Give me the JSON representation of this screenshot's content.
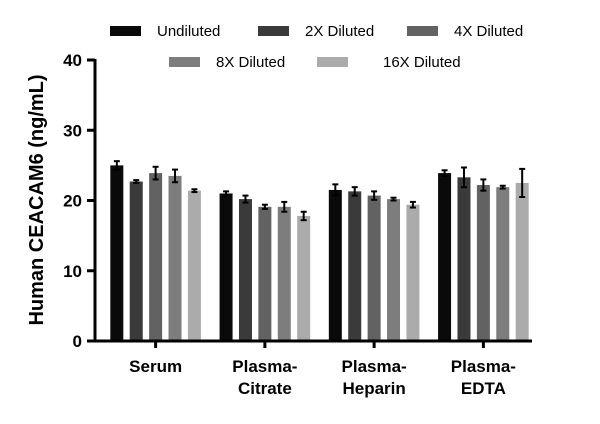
{
  "chart_data": {
    "type": "bar",
    "ylabel": "Human CEACAM6 (ng/mL)",
    "ylim": [
      0,
      40
    ],
    "yticks": [
      0,
      10,
      20,
      30,
      40
    ],
    "grid": false,
    "legend_position": "top",
    "categories": [
      [
        "Serum"
      ],
      [
        "Plasma-",
        "Citrate"
      ],
      [
        "Plasma-",
        "Heparin"
      ],
      [
        "Plasma-",
        "EDTA"
      ]
    ],
    "series": [
      {
        "name": "Undiluted",
        "color": "#0a0a0a",
        "values": [
          25.0,
          21.0,
          21.5,
          23.9
        ],
        "errors": [
          0.6,
          0.3,
          0.8,
          0.4
        ]
      },
      {
        "name": "2X Diluted",
        "color": "#3a3a3a",
        "values": [
          22.7,
          20.2,
          21.3,
          23.3
        ],
        "errors": [
          0.2,
          0.5,
          0.6,
          1.4
        ]
      },
      {
        "name": "4X Diluted",
        "color": "#626262",
        "values": [
          23.9,
          19.1,
          20.7,
          22.2
        ],
        "errors": [
          0.9,
          0.3,
          0.6,
          0.8
        ]
      },
      {
        "name": "8X Diluted",
        "color": "#7d7d7d",
        "values": [
          23.5,
          19.1,
          20.2,
          21.9
        ],
        "errors": [
          0.9,
          0.7,
          0.2,
          0.2
        ]
      },
      {
        "name": "16X Diluted",
        "color": "#ababab",
        "values": [
          21.4,
          17.8,
          19.4,
          22.5
        ],
        "errors": [
          0.2,
          0.6,
          0.4,
          2.0
        ]
      }
    ]
  }
}
